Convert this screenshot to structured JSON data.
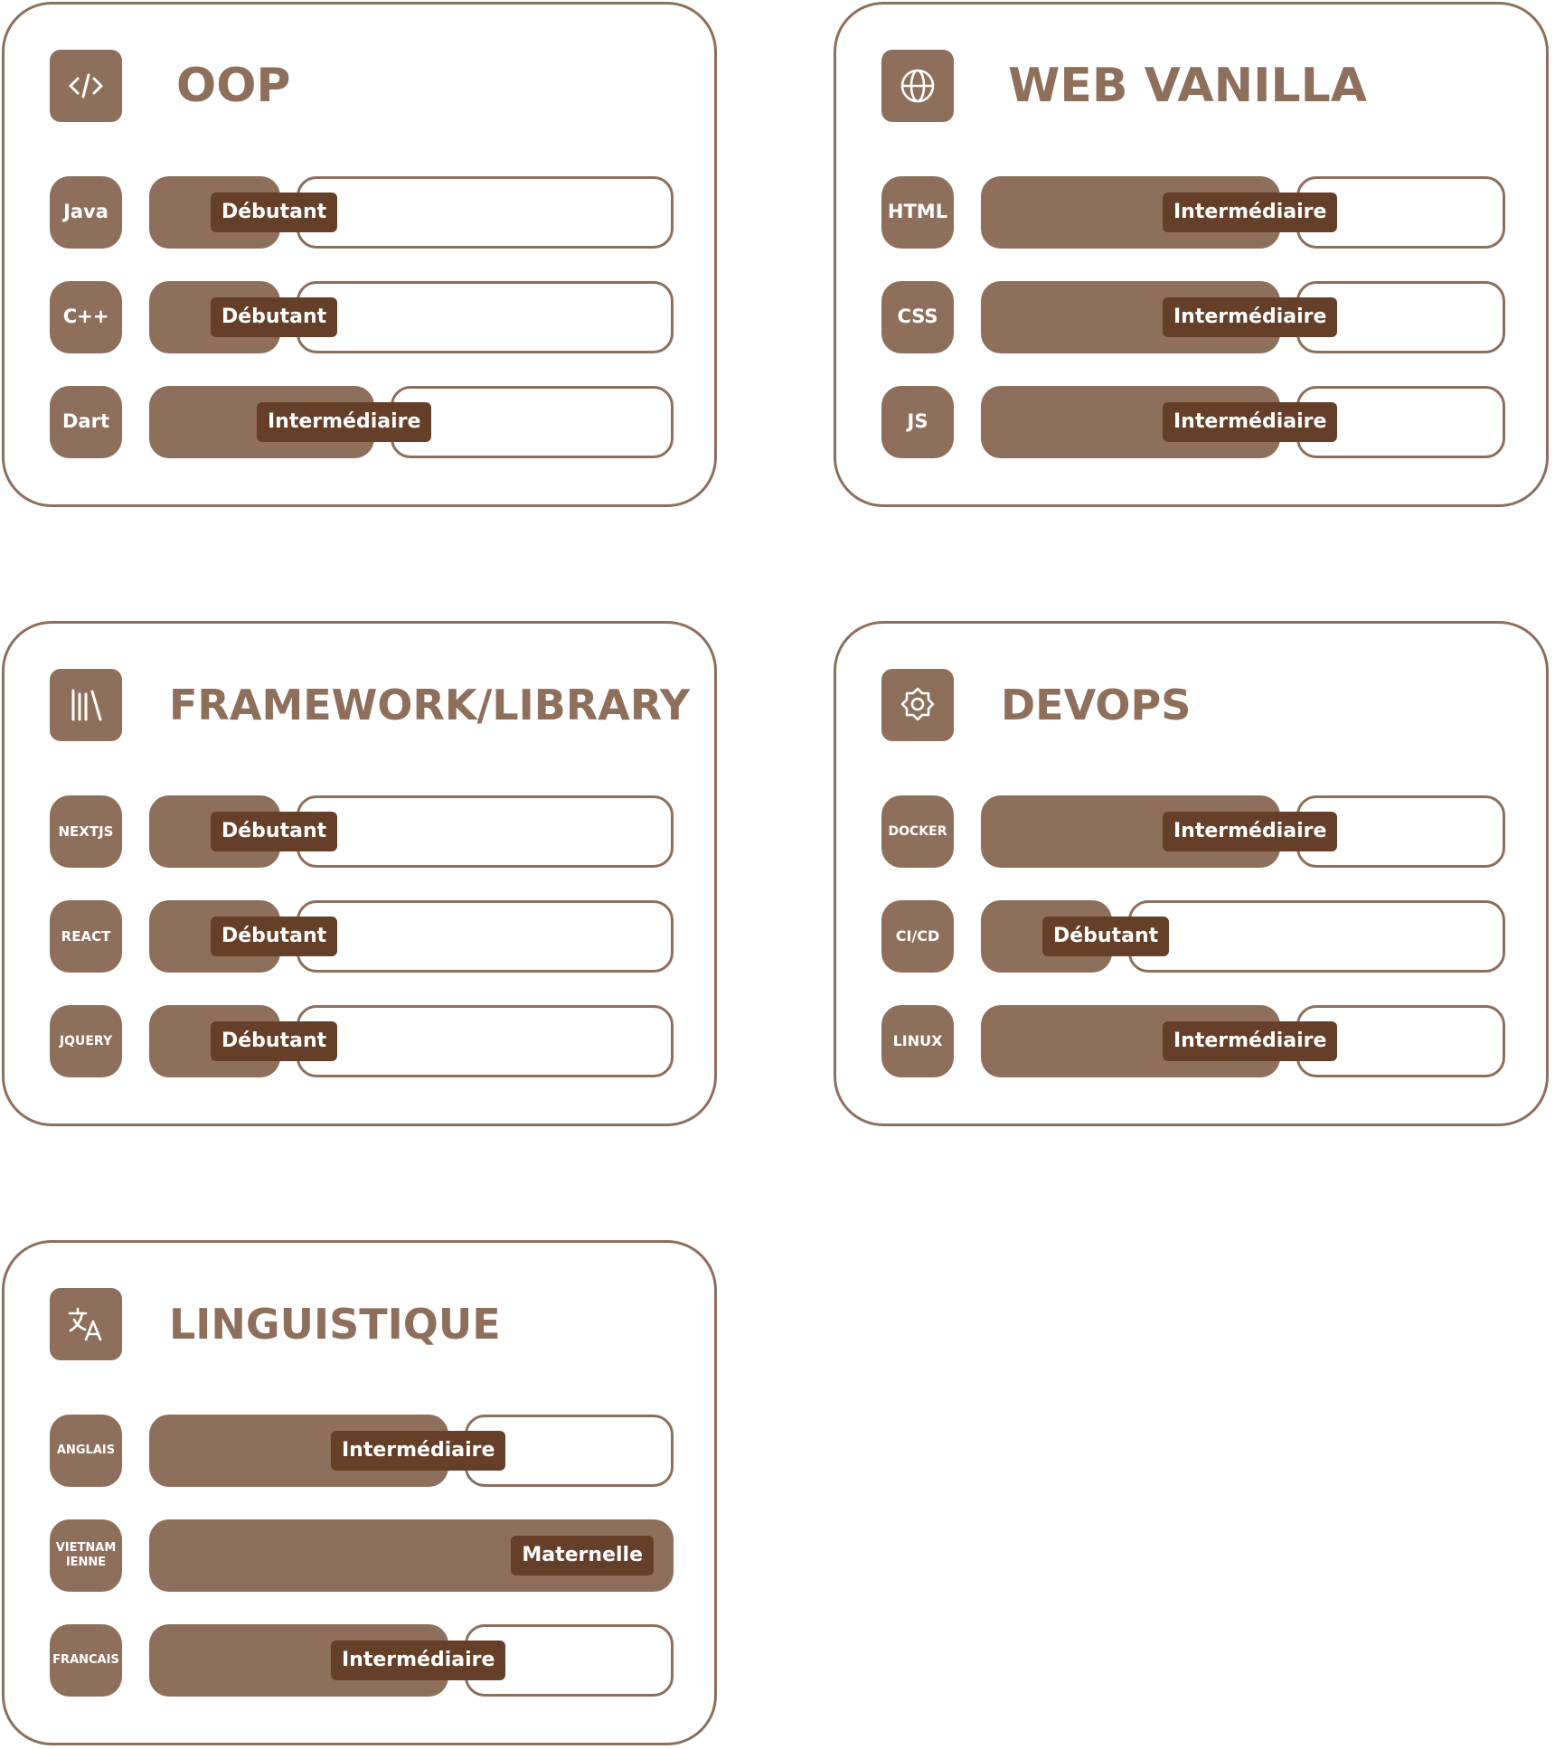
{
  "colors": {
    "primary": "#8e6f5b",
    "level_tag": "#653f27",
    "background": "#ffffff"
  },
  "cards": {
    "oop": {
      "title": "OOP",
      "icon": "code-icon",
      "rows": [
        {
          "label": "Java",
          "level": "Débutant",
          "progress": 0.25
        },
        {
          "label": "C++",
          "level": "Débutant",
          "progress": 0.25
        },
        {
          "label": "Dart",
          "level": "Intermédiaire",
          "progress": 0.43
        }
      ]
    },
    "web": {
      "title": "WEB VANILLA",
      "icon": "globe-icon",
      "rows": [
        {
          "label": "HTML",
          "level": "Intermédiaire",
          "progress": 0.57
        },
        {
          "label": "CSS",
          "level": "Intermédiaire",
          "progress": 0.57
        },
        {
          "label": "JS",
          "level": "Intermédiaire",
          "progress": 0.57
        }
      ]
    },
    "framework": {
      "title": "FRAMEWORK/LIBRARY",
      "icon": "library-icon",
      "rows": [
        {
          "label": "NEXTJS",
          "level": "Débutant",
          "progress": 0.25
        },
        {
          "label": "REACT",
          "level": "Débutant",
          "progress": 0.25
        },
        {
          "label": "JQUERY",
          "level": "Débutant",
          "progress": 0.25
        }
      ]
    },
    "devops": {
      "title": "DEVOPS",
      "icon": "gear-icon",
      "rows": [
        {
          "label": "DOCKER",
          "level": "Intermédiaire",
          "progress": 0.57
        },
        {
          "label": "CI/CD",
          "level": "Débutant",
          "progress": 0.25
        },
        {
          "label": "LINUX",
          "level": "Intermédiaire",
          "progress": 0.57
        }
      ]
    },
    "linguistique": {
      "title": "LINGUISTIQUE",
      "icon": "translate-icon",
      "rows": [
        {
          "label": "ANGLAIS",
          "level": "Intermédiaire",
          "progress": 0.57
        },
        {
          "label": "VIETNAMIENNE",
          "level": "Maternelle",
          "progress": 1.0
        },
        {
          "label": "FRANCAIS",
          "level": "Intermédiaire",
          "progress": 0.57
        }
      ]
    }
  }
}
